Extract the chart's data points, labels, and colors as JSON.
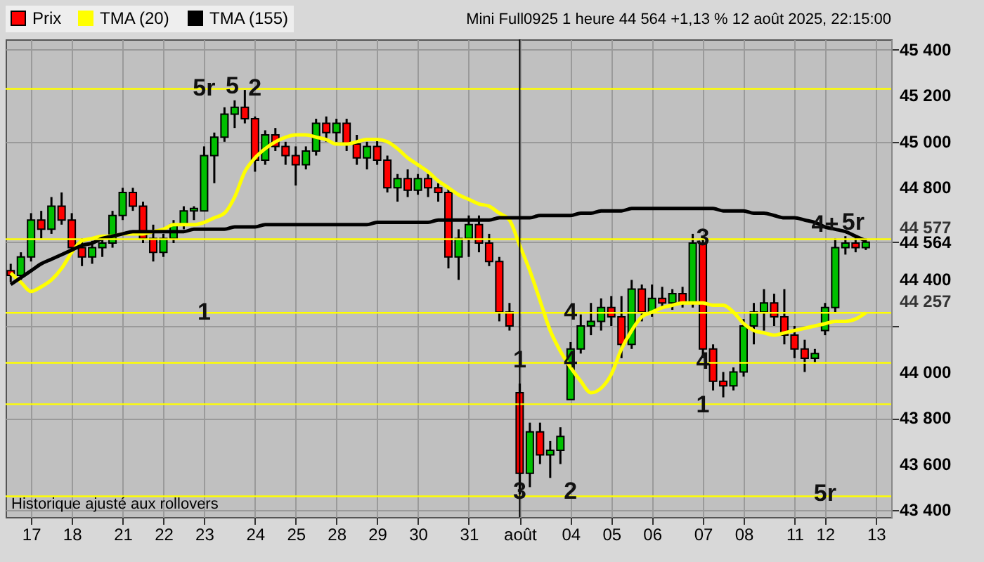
{
  "chart_data": {
    "type": "candlestick",
    "title": "Mini Full0925 1 heure 44 564 +1,13 % 12 août 2025, 22:15:00",
    "legend": "top left",
    "grid": true,
    "categories": [
      null,
      null,
      "17",
      null,
      null,
      null,
      "18",
      null,
      null,
      null,
      null,
      "21",
      null,
      null,
      null,
      "22",
      null,
      null,
      null,
      "23",
      null,
      null,
      null,
      null,
      "24",
      null,
      null,
      null,
      "25",
      null,
      null,
      null,
      "28",
      null,
      null,
      null,
      "29",
      null,
      null,
      null,
      "30",
      null,
      null,
      null,
      null,
      "31",
      null,
      null,
      null,
      null,
      "août",
      null,
      null,
      null,
      null,
      "04",
      null,
      null,
      null,
      "05",
      null,
      null,
      null,
      "06",
      null,
      null,
      null,
      null,
      "07",
      null,
      null,
      null,
      "08",
      null,
      null,
      null,
      null,
      "11",
      null,
      null,
      "12",
      null,
      null,
      null,
      null,
      "13",
      null
    ],
    "ylim": [
      43370,
      45445
    ],
    "yticks": [
      {
        "value": 43400,
        "label": "43 400"
      },
      {
        "value": 43600,
        "label": "43 600"
      },
      {
        "value": 43800,
        "label": "43 800"
      },
      {
        "value": 44000,
        "label": "44 000"
      },
      {
        "value": 44200,
        "label": null
      },
      {
        "value": 44400,
        "label": "44 400"
      },
      {
        "value": 44564,
        "label": "44 564"
      },
      {
        "value": 44800,
        "label": "44 800"
      },
      {
        "value": 45000,
        "label": "45 000"
      },
      {
        "value": 45200,
        "label": "45 200"
      },
      {
        "value": 45400,
        "label": "45 400"
      }
    ],
    "series": [
      {
        "name": "Prix",
        "color": "#000000",
        "colors": [
          "#ff0000",
          "#00c000",
          "#00c000",
          "#ff0000",
          "#00c000",
          "#ff0000",
          "#ff0000",
          "#ff0000",
          "#00c000",
          "#00c000",
          "#00c000",
          "#00c000",
          "#ff0000",
          "#ff0000",
          "#ff0000",
          "#00c000",
          "#00c000",
          "#00c000",
          "#00c000",
          "#00c000",
          "#00c000",
          "#00c000",
          "#00c000",
          "#ff0000",
          "#ff0000",
          "#00c000",
          "#ff0000",
          "#ff0000",
          "#ff0000",
          "#00c000",
          "#00c000",
          "#ff0000",
          "#00c000",
          "#ff0000",
          "#ff0000",
          "#00c000",
          "#ff0000",
          "#ff0000",
          "#00c000",
          "#ff0000",
          "#00c000",
          "#ff0000",
          "#ff0000",
          "#ff0000",
          "#00c000",
          "#00c000",
          "#ff0000",
          "#ff0000",
          "#ff0000",
          "#ff0000",
          "#ff0000",
          "#00c000",
          "#ff0000",
          "#00c000",
          "#00c000",
          "#00c000",
          "#00c000",
          "#00c000",
          "#00c000",
          "#ff0000",
          "#ff0000",
          "#00c000",
          "#ff0000",
          "#00c000",
          "#ff0000",
          "#00c000",
          "#ff0000",
          "#00c000",
          "#ff0000",
          "#ff0000",
          "#ff0000",
          "#00c000",
          "#00c000",
          "#00c000",
          "#00c000",
          "#ff0000",
          "#ff0000",
          "#ff0000",
          "#ff0000",
          "#00c000",
          "#00c000",
          "#00c000",
          "#00c000",
          "#ff0000",
          "#00c000",
          null,
          null
        ],
        "ohlc": [
          [
            44440,
            44470,
            44390,
            44420
          ],
          [
            44420,
            44520,
            44400,
            44500
          ],
          [
            44500,
            44690,
            44480,
            44660
          ],
          [
            44660,
            44700,
            44580,
            44620
          ],
          [
            44620,
            44760,
            44600,
            44720
          ],
          [
            44720,
            44780,
            44640,
            44660
          ],
          [
            44660,
            44690,
            44520,
            44540
          ],
          [
            44540,
            44580,
            44460,
            44500
          ],
          [
            44500,
            44570,
            44470,
            44540
          ],
          [
            44540,
            44580,
            44500,
            44560
          ],
          [
            44560,
            44700,
            44540,
            44680
          ],
          [
            44680,
            44800,
            44660,
            44780
          ],
          [
            44780,
            44800,
            44700,
            44720
          ],
          [
            44720,
            44740,
            44560,
            44580
          ],
          [
            44580,
            44640,
            44480,
            44520
          ],
          [
            44520,
            44600,
            44500,
            44580
          ],
          [
            44580,
            44660,
            44560,
            44640
          ],
          [
            44640,
            44720,
            44620,
            44700
          ],
          [
            44700,
            44720,
            44660,
            44710
          ],
          [
            44700,
            44980,
            44700,
            44940
          ],
          [
            44940,
            45040,
            44820,
            45020
          ],
          [
            45020,
            45150,
            45000,
            45120
          ],
          [
            45120,
            45180,
            45060,
            45150
          ],
          [
            45150,
            45225,
            45080,
            45100
          ],
          [
            45100,
            45110,
            44870,
            44920
          ],
          [
            44920,
            45050,
            44900,
            45030
          ],
          [
            45030,
            45060,
            44960,
            44980
          ],
          [
            44980,
            45000,
            44900,
            44940
          ],
          [
            44940,
            44980,
            44810,
            44900
          ],
          [
            44900,
            44980,
            44880,
            44960
          ],
          [
            44960,
            45100,
            44940,
            45080
          ],
          [
            45080,
            45110,
            45000,
            45040
          ],
          [
            45040,
            45100,
            45000,
            45080
          ],
          [
            45080,
            45100,
            44960,
            44990
          ],
          [
            44990,
            45030,
            44900,
            44930
          ],
          [
            44930,
            45000,
            44880,
            44980
          ],
          [
            44980,
            45010,
            44900,
            44920
          ],
          [
            44920,
            44940,
            44780,
            44800
          ],
          [
            44800,
            44860,
            44740,
            44840
          ],
          [
            44840,
            44880,
            44760,
            44790
          ],
          [
            44790,
            44860,
            44770,
            44840
          ],
          [
            44840,
            44860,
            44760,
            44800
          ],
          [
            44800,
            44820,
            44740,
            44780
          ],
          [
            44780,
            44800,
            44450,
            44500
          ],
          [
            44500,
            44620,
            44400,
            44580
          ],
          [
            44580,
            44680,
            44500,
            44640
          ],
          [
            44640,
            44680,
            44520,
            44560
          ],
          [
            44560,
            44600,
            44460,
            44480
          ],
          [
            44480,
            44500,
            44220,
            44260
          ],
          [
            44260,
            44300,
            44180,
            44200
          ],
          [
            43910,
            43950,
            43470,
            43560
          ],
          [
            43560,
            43780,
            43500,
            43740
          ],
          [
            43740,
            43780,
            43600,
            43640
          ],
          [
            43640,
            43700,
            43540,
            43660
          ],
          [
            43660,
            43760,
            43600,
            43720
          ],
          [
            43880,
            44130,
            43880,
            44100
          ],
          [
            44100,
            44250,
            44080,
            44200
          ],
          [
            44200,
            44300,
            44160,
            44220
          ],
          [
            44220,
            44320,
            44180,
            44280
          ],
          [
            44280,
            44330,
            44200,
            44240
          ],
          [
            44240,
            44330,
            44060,
            44120
          ],
          [
            44120,
            44400,
            44100,
            44360
          ],
          [
            44360,
            44380,
            44220,
            44260
          ],
          [
            44260,
            44380,
            44240,
            44320
          ],
          [
            44320,
            44370,
            44280,
            44300
          ],
          [
            44300,
            44360,
            44270,
            44340
          ],
          [
            44340,
            44370,
            44280,
            44300
          ],
          [
            44300,
            44600,
            44280,
            44560
          ],
          [
            44560,
            44580,
            44060,
            44100
          ],
          [
            44100,
            44120,
            43920,
            43960
          ],
          [
            43960,
            44000,
            43890,
            43940
          ],
          [
            43940,
            44020,
            43920,
            44000
          ],
          [
            44000,
            44230,
            43980,
            44200
          ],
          [
            44200,
            44300,
            44120,
            44260
          ],
          [
            44260,
            44360,
            44180,
            44300
          ],
          [
            44300,
            44340,
            44200,
            44240
          ],
          [
            44240,
            44360,
            44120,
            44160
          ],
          [
            44160,
            44200,
            44060,
            44100
          ],
          [
            44100,
            44140,
            44000,
            44060
          ],
          [
            44060,
            44100,
            44040,
            44080
          ],
          [
            44180,
            44300,
            44160,
            44280
          ],
          [
            44280,
            44580,
            44260,
            44540
          ],
          [
            44540,
            44590,
            44510,
            44560
          ],
          [
            44560,
            44590,
            44520,
            44540
          ],
          [
            44540,
            44580,
            44530,
            44564
          ],
          null,
          null
        ]
      },
      {
        "name": "TMA (20)",
        "type": "line",
        "color": "#ffff00",
        "values": [
          44430,
          44390,
          44350,
          44370,
          44400,
          44450,
          44520,
          44570,
          44580,
          44590,
          44590,
          44600,
          44600,
          44600,
          44610,
          44620,
          44640,
          44640,
          44640,
          44650,
          44670,
          44690,
          44760,
          44870,
          44930,
          44970,
          45000,
          45020,
          45030,
          45030,
          45020,
          45010,
          44990,
          44990,
          45000,
          45010,
          45010,
          45000,
          44970,
          44930,
          44900,
          44870,
          44830,
          44800,
          44770,
          44750,
          44730,
          44720,
          44690,
          44660,
          44550,
          44440,
          44310,
          44180,
          44090,
          44020,
          43960,
          43910,
          43930,
          43990,
          44100,
          44180,
          44240,
          44260,
          44280,
          44290,
          44300,
          44300,
          44300,
          44290,
          44290,
          44260,
          44210,
          44180,
          44170,
          44160,
          44170,
          44180,
          44190,
          44200,
          44210,
          44220,
          44220,
          44230,
          44257,
          null,
          null
        ]
      },
      {
        "name": "TMA (155)",
        "type": "line",
        "color": "#000000",
        "values": [
          44380,
          44410,
          44440,
          44470,
          44490,
          44510,
          44530,
          44550,
          44560,
          44580,
          44590,
          44600,
          44610,
          44610,
          44610,
          44610,
          44610,
          44610,
          44620,
          44620,
          44620,
          44620,
          44630,
          44630,
          44630,
          44640,
          44640,
          44640,
          44640,
          44640,
          44640,
          44640,
          44640,
          44640,
          44640,
          44640,
          44650,
          44650,
          44650,
          44650,
          44650,
          44650,
          44660,
          44660,
          44660,
          44660,
          44660,
          44660,
          44670,
          44670,
          44670,
          44670,
          44680,
          44680,
          44680,
          44680,
          44690,
          44690,
          44700,
          44700,
          44700,
          44710,
          44710,
          44710,
          44710,
          44710,
          44710,
          44710,
          44710,
          44710,
          44700,
          44700,
          44700,
          44690,
          44690,
          44680,
          44670,
          44670,
          44660,
          44650,
          44630,
          44620,
          44610,
          44590,
          44570,
          null,
          null
        ]
      }
    ],
    "ref_lines": [
      {
        "axis": "y",
        "value": 45230,
        "color": "#ffff00"
      },
      {
        "axis": "y",
        "value": 44577,
        "label": "44 577",
        "color": "#ffff00"
      },
      {
        "axis": "y",
        "value": 44257,
        "label": "44 257",
        "color": "#ffff00"
      },
      {
        "axis": "y",
        "value": 44040,
        "color": "#ffff00"
      },
      {
        "axis": "y",
        "value": 43860,
        "color": "#ffff00"
      },
      {
        "axis": "y",
        "value": 43460,
        "color": "#ffff00"
      },
      {
        "axis": "x",
        "value": "août",
        "color": "#000000"
      }
    ],
    "annotations": [
      "Historique ajusté aux rollovers",
      {
        "text": "5r",
        "x": "23",
        "y": 45230
      },
      {
        "text": "5",
        "x": "23",
        "y": 45240
      },
      {
        "text": "1",
        "x": "23",
        "y": 44257
      },
      {
        "text": "2",
        "x": "24",
        "y": 45230
      },
      {
        "text": "3",
        "x": "août",
        "y": 43480
      },
      {
        "text": "1",
        "x": "août",
        "y": 44050
      },
      {
        "text": "4",
        "x": "04",
        "y": 44050
      },
      {
        "text": "2",
        "x": "04",
        "y": 43480
      },
      {
        "text": "4",
        "x": "04",
        "y": 44257
      },
      {
        "text": "4",
        "x": "07",
        "y": 44045
      },
      {
        "text": "3",
        "x": "07",
        "y": 44580
      },
      {
        "text": "1",
        "x": "07",
        "y": 43855
      },
      {
        "text": "4+",
        "x": "12",
        "y": 44640
      },
      {
        "text": "5r",
        "x": "12",
        "y": 44650
      },
      {
        "text": "5r",
        "x": "12",
        "y": 43470
      }
    ]
  }
}
